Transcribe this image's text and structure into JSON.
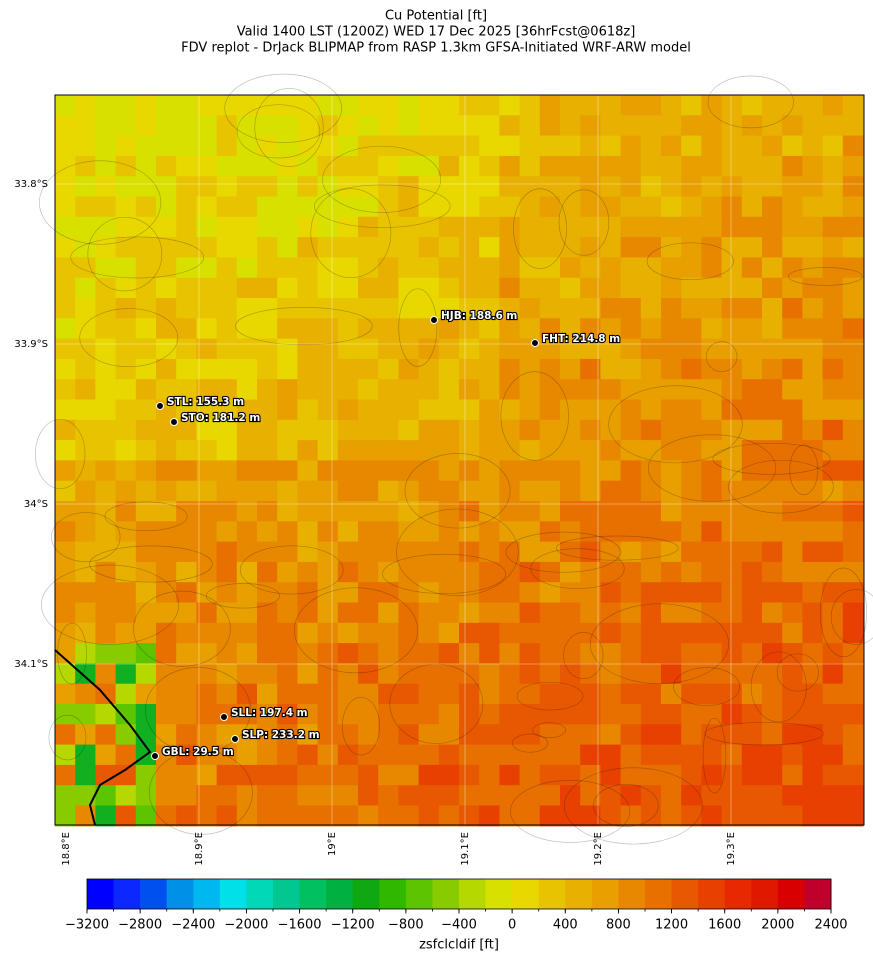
{
  "title": [
    "Cu Potential [ft]",
    "Valid 1400 LST (1200Z) WED 17 Dec 2025 [36hrFcst@0618z]",
    "FDV replot - DrJack BLIPMAP from RASP 1.3km GFSA-Initiated WRF-ARW model"
  ],
  "map": {
    "lat_labels": [
      "33.8°S",
      "33.9°S",
      "34°S",
      "34.1°S"
    ],
    "lon_labels": [
      "18.8°E",
      "18.9°E",
      "19°E",
      "19.1°E",
      "19.2°E",
      "19.3°E"
    ],
    "stations": [
      {
        "label": "HJB: 188.6 m"
      },
      {
        "label": "FHT: 214.8 m"
      },
      {
        "label": "STL: 155.3 m"
      },
      {
        "label": "STO: 181.2 m"
      },
      {
        "label": "SLL: 197.4 m"
      },
      {
        "label": "SLP: 233.2 m"
      },
      {
        "label": "GBL: 29.5 m"
      }
    ]
  },
  "colorbar": {
    "label": "zsfclcldif [ft]",
    "lim": [
      -3200,
      2400
    ],
    "ticks": [
      {
        "value": -3200,
        "label": "−3200"
      },
      {
        "value": -2800,
        "label": "−2800"
      },
      {
        "value": -2400,
        "label": "−2400"
      },
      {
        "value": -2000,
        "label": "−2000"
      },
      {
        "value": -1600,
        "label": "−1600"
      },
      {
        "value": -1200,
        "label": "−1200"
      },
      {
        "value": -800,
        "label": "−800"
      },
      {
        "value": -400,
        "label": "−400"
      },
      0,
      400,
      800,
      1200,
      1600,
      2000,
      2400
    ],
    "colors": [
      "#0000ff",
      "#0a28ff",
      "#0050f0",
      "#0090e8",
      "#00b8f0",
      "#00e0e8",
      "#00d8b8",
      "#00c890",
      "#00c060",
      "#00b040",
      "#10a810",
      "#30b800",
      "#5cc400",
      "#88cc00",
      "#b4d800",
      "#d8e000",
      "#e8d800",
      "#e8c400",
      "#e8b000",
      "#e8a000",
      "#e88800",
      "#e87000",
      "#e85800",
      "#e84000",
      "#e82800",
      "#e01800",
      "#d80000",
      "#c0002a"
    ]
  }
}
